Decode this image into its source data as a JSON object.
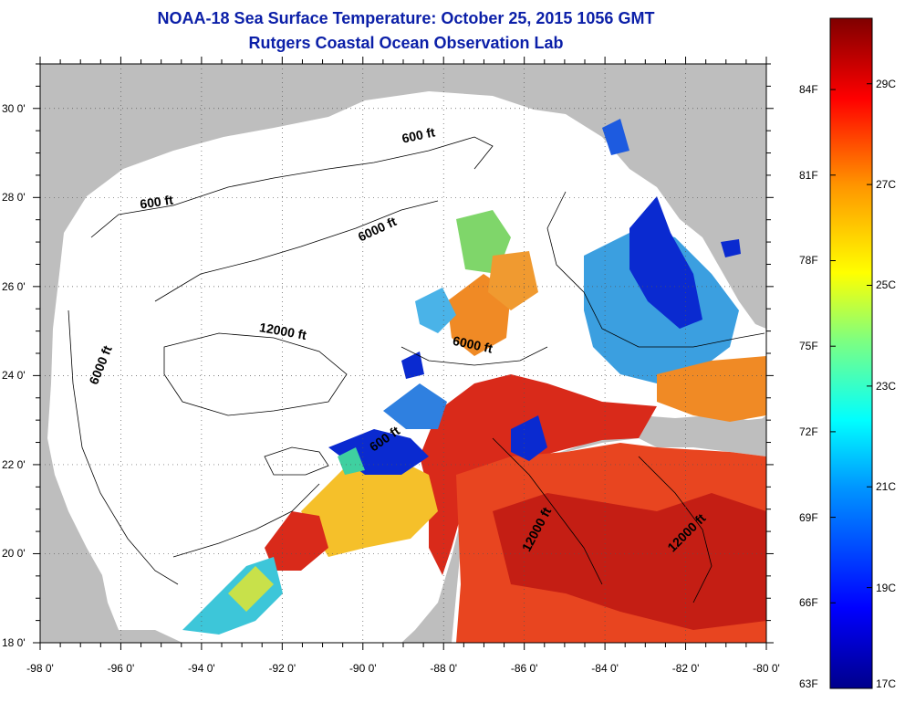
{
  "title_line1": "NOAA-18 Sea Surface Temperature:  October 25, 2015 1056 GMT",
  "title_line2": "Rutgers Coastal Ocean Observation Lab",
  "map": {
    "lon_range": [
      -98,
      -80
    ],
    "lat_range": [
      18,
      31
    ],
    "lat_ticks": [
      {
        "value": 18,
        "label": "18 0'"
      },
      {
        "value": 20,
        "label": "20 0'"
      },
      {
        "value": 22,
        "label": "22 0'"
      },
      {
        "value": 24,
        "label": "24 0'"
      },
      {
        "value": 26,
        "label": "26 0'"
      },
      {
        "value": 28,
        "label": "28 0'"
      },
      {
        "value": 30,
        "label": "30 0'"
      }
    ],
    "lon_ticks": [
      {
        "value": -98,
        "label": "-98 0'"
      },
      {
        "value": -96,
        "label": "-96 0'"
      },
      {
        "value": -94,
        "label": "-94 0'"
      },
      {
        "value": -92,
        "label": "-92 0'"
      },
      {
        "value": -90,
        "label": "-90 0'"
      },
      {
        "value": -88,
        "label": "-88 0'"
      },
      {
        "value": -86,
        "label": "-86 0'"
      },
      {
        "value": -84,
        "label": "-84 0'"
      },
      {
        "value": -82,
        "label": "-82 0'"
      },
      {
        "value": -80,
        "label": "-80 0'"
      }
    ],
    "contour_labels": [
      {
        "text": "600 ft",
        "lon": -88.6,
        "lat": 29.3,
        "angle": -12
      },
      {
        "text": "600 ft",
        "lon": -95.1,
        "lat": 27.8,
        "angle": -8
      },
      {
        "text": "6000 ft",
        "lon": -89.6,
        "lat": 27.2,
        "angle": -25
      },
      {
        "text": "12000 ft",
        "lon": -92.0,
        "lat": 24.9,
        "angle": 10
      },
      {
        "text": "6000 ft",
        "lon": -96.4,
        "lat": 24.2,
        "angle": -68
      },
      {
        "text": "6000 ft",
        "lon": -87.3,
        "lat": 24.6,
        "angle": 12
      },
      {
        "text": "600 ft",
        "lon": -89.4,
        "lat": 22.5,
        "angle": -35
      },
      {
        "text": "12000 ft",
        "lon": -85.6,
        "lat": 20.5,
        "angle": -62
      },
      {
        "text": "12000 ft",
        "lon": -81.9,
        "lat": 20.4,
        "angle": -45
      }
    ],
    "colors": {
      "land": "#bebebe",
      "ocean_no_data": "#ffffff"
    }
  },
  "colorbar": {
    "f_labels": [
      "84F",
      "81F",
      "78F",
      "75F",
      "72F",
      "69F",
      "66F",
      "63F"
    ],
    "c_labels": [
      "29C",
      "27C",
      "25C",
      "23C",
      "21C",
      "19C",
      "17C"
    ],
    "range_f": [
      63,
      86.5
    ],
    "range_c": [
      17,
      30.3
    ]
  }
}
